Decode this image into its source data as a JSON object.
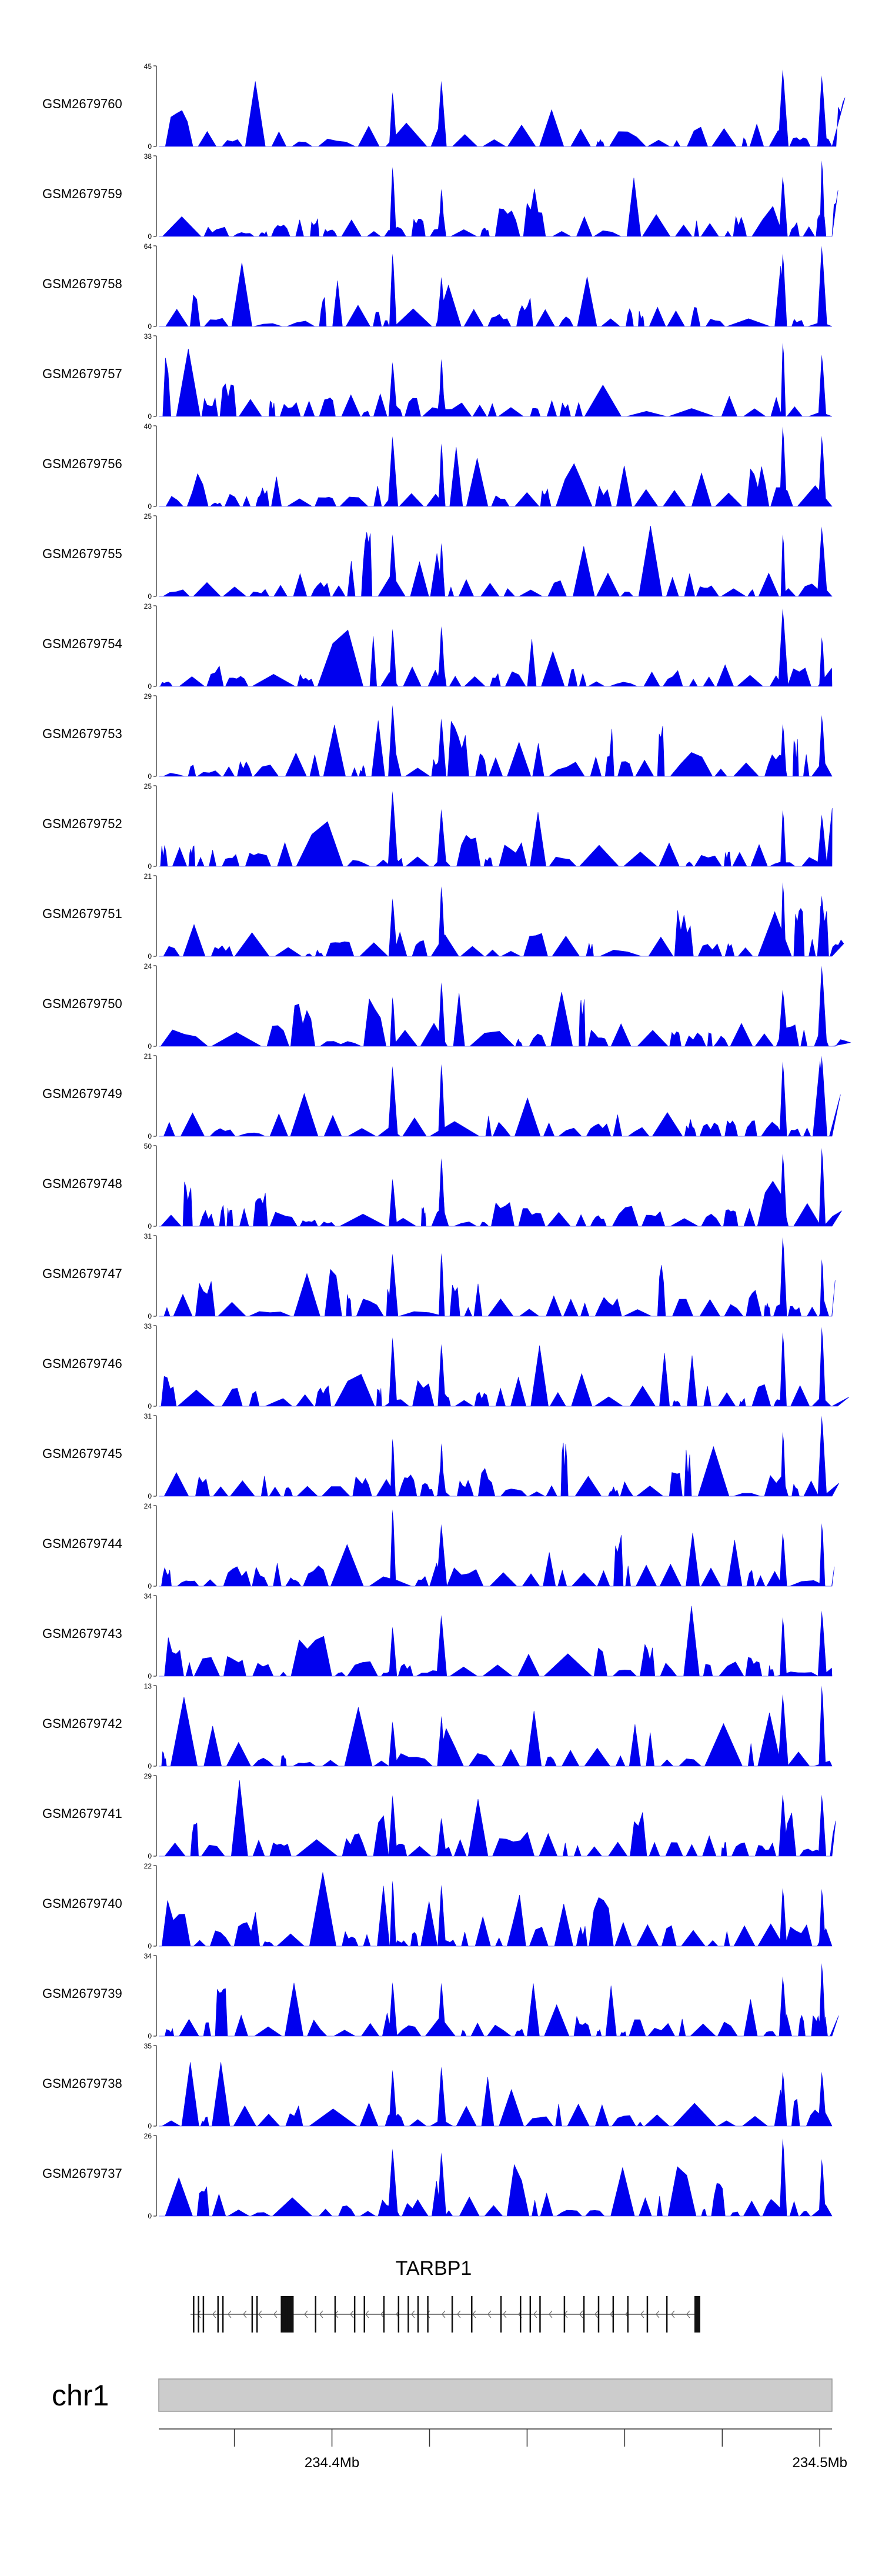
{
  "colors": {
    "track_fill": "#0000ee",
    "axis": "#222222",
    "chrom_bar": "#cccccc",
    "chrom_border": "#999999"
  },
  "chart_data": {
    "type": "area",
    "title": "",
    "x_domain_mb": [
      234.3645,
      234.5025
    ],
    "tracks": [
      {
        "name": "GSM2679760",
        "ymax": "45",
        "ymin": "0"
      },
      {
        "name": "GSM2679759",
        "ymax": "38",
        "ymin": "0"
      },
      {
        "name": "GSM2679758",
        "ymax": "64",
        "ymin": "0"
      },
      {
        "name": "GSM2679757",
        "ymax": "33",
        "ymin": "0"
      },
      {
        "name": "GSM2679756",
        "ymax": "40",
        "ymin": "0"
      },
      {
        "name": "GSM2679755",
        "ymax": "25",
        "ymin": "0"
      },
      {
        "name": "GSM2679754",
        "ymax": "23",
        "ymin": "0"
      },
      {
        "name": "GSM2679753",
        "ymax": "29",
        "ymin": "0"
      },
      {
        "name": "GSM2679752",
        "ymax": "25",
        "ymin": "0"
      },
      {
        "name": "GSM2679751",
        "ymax": "21",
        "ymin": "0"
      },
      {
        "name": "GSM2679750",
        "ymax": "24",
        "ymin": "0"
      },
      {
        "name": "GSM2679749",
        "ymax": "21",
        "ymin": "0"
      },
      {
        "name": "GSM2679748",
        "ymax": "50",
        "ymin": "0"
      },
      {
        "name": "GSM2679747",
        "ymax": "31",
        "ymin": "0"
      },
      {
        "name": "GSM2679746",
        "ymax": "33",
        "ymin": "0"
      },
      {
        "name": "GSM2679745",
        "ymax": "31",
        "ymin": "0"
      },
      {
        "name": "GSM2679744",
        "ymax": "24",
        "ymin": "0"
      },
      {
        "name": "GSM2679743",
        "ymax": "34",
        "ymin": "0"
      },
      {
        "name": "GSM2679742",
        "ymax": "13",
        "ymin": "0"
      },
      {
        "name": "GSM2679741",
        "ymax": "29",
        "ymin": "0"
      },
      {
        "name": "GSM2679740",
        "ymax": "22",
        "ymin": "0"
      },
      {
        "name": "GSM2679739",
        "ymax": "34",
        "ymin": "0"
      },
      {
        "name": "GSM2679738",
        "ymax": "35",
        "ymin": "0"
      },
      {
        "name": "GSM2679737",
        "ymax": "26",
        "ymin": "0"
      }
    ],
    "peaks_mb": [
      234.4125,
      234.4225,
      234.4225,
      234.4925,
      234.5005
    ],
    "gene": {
      "name": "TARBP1",
      "strand": "-",
      "start_mb": 234.371,
      "end_mb": 234.4755,
      "exons_mb": [
        234.3715,
        234.3725,
        234.3735,
        234.3765,
        234.3775,
        234.3835,
        234.3845,
        234.3895,
        234.3905,
        234.3915,
        234.3965,
        234.4005,
        234.4045,
        234.4065,
        234.4105,
        234.4135,
        234.4155,
        234.4175,
        234.4195,
        234.4245,
        234.4285,
        234.4345,
        234.4385,
        234.4405,
        234.4425,
        234.4475,
        234.4515,
        234.4545,
        234.4575,
        234.4605,
        234.4645,
        234.4685
      ]
    },
    "chromosome": "chr1",
    "axis": {
      "ticks_mb": [
        234.38,
        234.4,
        234.42,
        234.44,
        234.46,
        234.48,
        234.5
      ],
      "labels": [
        {
          "value": 234.4,
          "text": "234.4Mb"
        },
        {
          "value": 234.5,
          "text": "234.5Mb"
        }
      ]
    }
  }
}
